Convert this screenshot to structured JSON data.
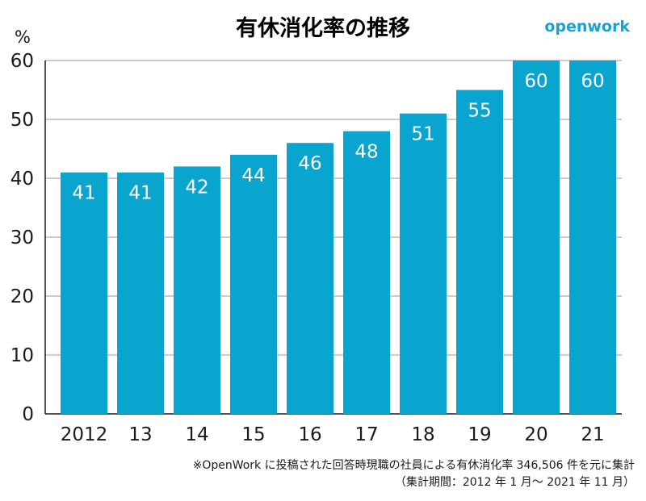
{
  "brand": {
    "name": "openwork",
    "color": "#1aa0d2"
  },
  "footnote": {
    "line1": "※OpenWork に投稿された回答時現職の社員による有休消化率 346,506 件を元に集計",
    "line2": "（集計期間：2012 年 1 月〜 2021 年 11 月）"
  },
  "colors": {
    "bar": "#0aa5cf",
    "grid": "#9a9a9a",
    "axis": "#1a1a1a",
    "text": "#1a1a1a",
    "label": "#ffffff"
  },
  "chart_data": {
    "type": "bar",
    "title": "有休消化率の推移",
    "ylabel": "%",
    "xlabel": "",
    "categories": [
      "2012",
      "13",
      "14",
      "15",
      "16",
      "17",
      "18",
      "19",
      "20",
      "21"
    ],
    "values": [
      41,
      41,
      42,
      44,
      46,
      48,
      51,
      55,
      60,
      60
    ],
    "data_labels": [
      "41",
      "41",
      "42",
      "44",
      "46",
      "48",
      "51",
      "55",
      "60",
      "60"
    ],
    "ylim": [
      0,
      60
    ],
    "yticks": [
      0,
      10,
      20,
      30,
      40,
      50,
      60
    ],
    "grid": true,
    "legend": "none"
  }
}
